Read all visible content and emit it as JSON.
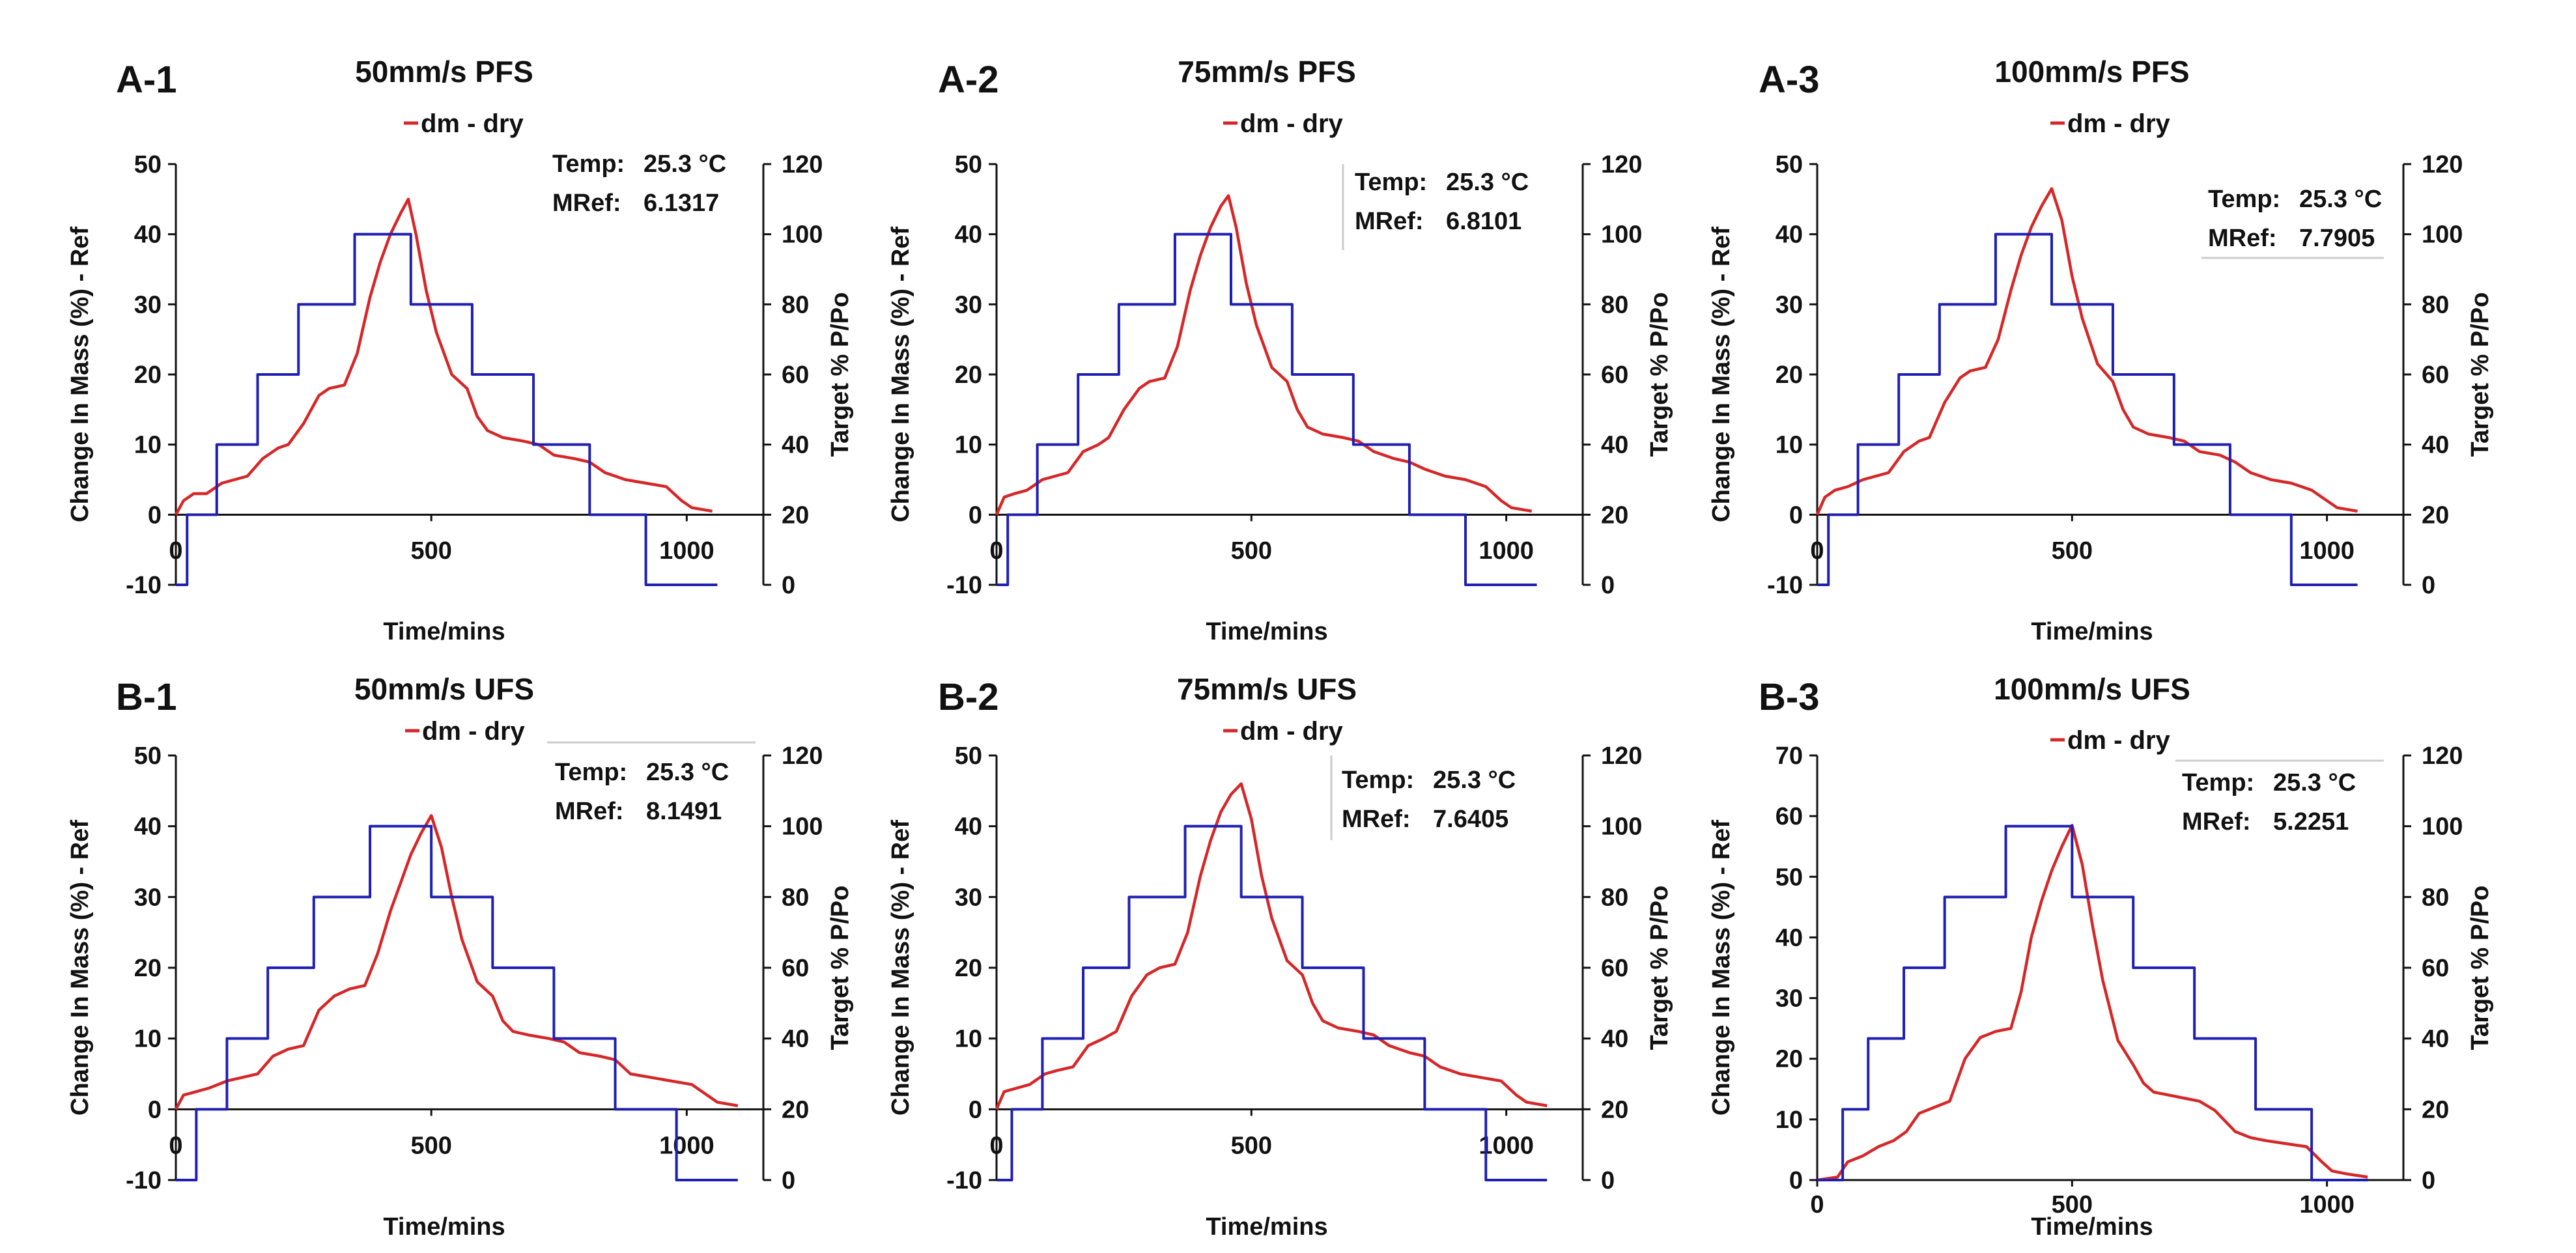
{
  "chart_data": [
    {
      "id": "A-1",
      "panel_label": "A-1",
      "type": "line",
      "title": "50mm/s PFS",
      "legend": "dm - dry",
      "xlabel": "Time/mins",
      "ylabel": "Change In Mass (%) - Ref",
      "y2label": "Target % P/Po",
      "xlim": [
        0,
        1150
      ],
      "ylim": [
        -10,
        50
      ],
      "y2lim": [
        0,
        120
      ],
      "xticks": [
        "0",
        "500",
        "1000"
      ],
      "yticks": [
        "-10",
        "0",
        "10",
        "20",
        "30",
        "40",
        "50"
      ],
      "y2ticks": [
        "0",
        "20",
        "40",
        "60",
        "80",
        "100",
        "120"
      ],
      "info": {
        "temp_label": "Temp:",
        "temp_value": "25.3 °C",
        "mref_label": "MRef:",
        "mref_value": "6.1317"
      },
      "series": [
        {
          "name": "dm - dry",
          "axis": "left",
          "color": "#d62728",
          "x": [
            0,
            15,
            35,
            60,
            90,
            115,
            140,
            170,
            200,
            220,
            250,
            280,
            300,
            330,
            355,
            380,
            400,
            420,
            440,
            455,
            470,
            490,
            510,
            540,
            570,
            590,
            610,
            640,
            680,
            710,
            740,
            780,
            810,
            840,
            880,
            920,
            960,
            990,
            1010,
            1050
          ],
          "values": [
            0,
            2,
            3,
            3,
            4.5,
            5,
            5.5,
            8,
            9.5,
            10,
            13,
            17,
            18,
            18.5,
            23,
            31,
            36,
            40,
            43,
            45,
            40,
            32,
            26,
            20,
            18,
            14,
            12,
            11,
            10.5,
            10,
            8.5,
            8,
            7.5,
            6,
            5,
            4.5,
            4,
            2,
            1,
            0.5
          ]
        },
        {
          "name": "Target % P/Po",
          "axis": "right",
          "color": "#1f1fb4",
          "step": true,
          "x": [
            0,
            22,
            80,
            160,
            240,
            350,
            460,
            580,
            700,
            810,
            920,
            1060
          ],
          "values": [
            0,
            20,
            40,
            60,
            80,
            100,
            80,
            60,
            40,
            20,
            0,
            0
          ]
        }
      ]
    },
    {
      "id": "A-2",
      "panel_label": "A-2",
      "type": "line",
      "title": "75mm/s PFS",
      "legend": "dm - dry",
      "xlabel": "Time/mins",
      "ylabel": "Change In Mass (%) - Ref",
      "y2label": "Target % P/Po",
      "xlim": [
        0,
        1150
      ],
      "ylim": [
        -10,
        50
      ],
      "y2lim": [
        0,
        120
      ],
      "xticks": [
        "0",
        "500",
        "1000"
      ],
      "yticks": [
        "-10",
        "0",
        "10",
        "20",
        "30",
        "40",
        "50"
      ],
      "y2ticks": [
        "0",
        "20",
        "40",
        "60",
        "80",
        "100",
        "120"
      ],
      "info": {
        "temp_label": "Temp:",
        "temp_value": "25.3 °C",
        "mref_label": "MRef:",
        "mref_value": "6.8101"
      },
      "series": [
        {
          "name": "dm - dry",
          "axis": "left",
          "color": "#d62728",
          "x": [
            0,
            15,
            35,
            60,
            90,
            115,
            140,
            170,
            200,
            220,
            250,
            280,
            300,
            330,
            355,
            380,
            400,
            420,
            440,
            455,
            470,
            490,
            510,
            540,
            570,
            590,
            610,
            640,
            680,
            710,
            740,
            780,
            810,
            840,
            880,
            920,
            960,
            990,
            1010,
            1050
          ],
          "values": [
            0,
            2.5,
            3,
            3.5,
            5,
            5.5,
            6,
            9,
            10,
            11,
            15,
            18,
            19,
            19.5,
            24,
            32,
            37,
            41,
            44,
            45.5,
            41,
            33,
            27,
            21,
            19,
            15,
            12.5,
            11.5,
            11,
            10.5,
            9,
            8,
            7.5,
            6.5,
            5.5,
            5,
            4,
            2,
            1,
            0.5
          ]
        },
        {
          "name": "Target % P/Po",
          "axis": "right",
          "color": "#1f1fb4",
          "step": true,
          "x": [
            0,
            22,
            80,
            160,
            240,
            350,
            460,
            580,
            700,
            810,
            920,
            1060
          ],
          "values": [
            0,
            20,
            40,
            60,
            80,
            100,
            80,
            60,
            40,
            20,
            0,
            0
          ]
        }
      ]
    },
    {
      "id": "A-3",
      "panel_label": "A-3",
      "type": "line",
      "title": "100mm/s PFS",
      "legend": "dm - dry",
      "xlabel": "Time/mins",
      "ylabel": "Change In Mass (%) - Ref",
      "y2label": "Target % P/Po",
      "xlim": [
        0,
        1150
      ],
      "ylim": [
        -10,
        50
      ],
      "y2lim": [
        0,
        120
      ],
      "xticks": [
        "0",
        "500",
        "1000"
      ],
      "yticks": [
        "-10",
        "0",
        "10",
        "20",
        "30",
        "40",
        "50"
      ],
      "y2ticks": [
        "0",
        "20",
        "40",
        "60",
        "80",
        "100",
        "120"
      ],
      "info": {
        "temp_label": "Temp:",
        "temp_value": "25.3 °C",
        "mref_label": "MRef:",
        "mref_value": "7.7905"
      },
      "series": [
        {
          "name": "dm - dry",
          "axis": "left",
          "color": "#d62728",
          "x": [
            0,
            15,
            35,
            60,
            90,
            115,
            140,
            170,
            200,
            220,
            250,
            280,
            300,
            330,
            355,
            380,
            400,
            420,
            440,
            460,
            480,
            500,
            520,
            550,
            580,
            600,
            620,
            650,
            690,
            720,
            750,
            790,
            820,
            850,
            890,
            930,
            970,
            1000,
            1020,
            1060
          ],
          "values": [
            0,
            2.5,
            3.5,
            4,
            5,
            5.5,
            6,
            9,
            10.5,
            11,
            16,
            19.5,
            20.5,
            21,
            25,
            32,
            37,
            41,
            44,
            46.5,
            42,
            34,
            28,
            21.5,
            19,
            15,
            12.5,
            11.5,
            11,
            10.5,
            9,
            8.5,
            7.5,
            6,
            5,
            4.5,
            3.5,
            2,
            1,
            0.5
          ]
        },
        {
          "name": "Target % P/Po",
          "axis": "right",
          "color": "#1f1fb4",
          "step": true,
          "x": [
            0,
            22,
            80,
            160,
            240,
            350,
            460,
            580,
            700,
            810,
            930,
            1060
          ],
          "values": [
            0,
            20,
            40,
            60,
            80,
            100,
            80,
            60,
            40,
            20,
            0,
            0
          ]
        }
      ]
    },
    {
      "id": "B-1",
      "panel_label": "B-1",
      "type": "line",
      "title": "50mm/s UFS",
      "legend": "dm - dry",
      "xlabel": "Time/mins",
      "ylabel": "Change In Mass (%) - Ref",
      "y2label": "Target % P/Po",
      "xlim": [
        0,
        1150
      ],
      "ylim": [
        -10,
        50
      ],
      "y2lim": [
        0,
        120
      ],
      "xticks": [
        "0",
        "500",
        "1000"
      ],
      "yticks": [
        "-10",
        "0",
        "10",
        "20",
        "30",
        "40",
        "50"
      ],
      "y2ticks": [
        "0",
        "20",
        "40",
        "60",
        "80",
        "100",
        "120"
      ],
      "info": {
        "temp_label": "Temp:",
        "temp_value": "25.3 °C",
        "mref_label": "MRef:",
        "mref_value": "8.1491"
      },
      "series": [
        {
          "name": "dm - dry",
          "axis": "left",
          "color": "#d62728",
          "x": [
            0,
            15,
            40,
            65,
            100,
            130,
            160,
            190,
            220,
            250,
            280,
            310,
            340,
            370,
            395,
            420,
            440,
            460,
            480,
            500,
            520,
            540,
            560,
            590,
            620,
            640,
            660,
            690,
            730,
            760,
            790,
            830,
            860,
            890,
            930,
            970,
            1010,
            1040,
            1060,
            1100
          ],
          "values": [
            0,
            2,
            2.5,
            3,
            4,
            4.5,
            5,
            7.5,
            8.5,
            9,
            14,
            16,
            17,
            17.5,
            22,
            28,
            32,
            36,
            39,
            41.5,
            37,
            30,
            24,
            18,
            16,
            12.5,
            11,
            10.5,
            10,
            9.5,
            8,
            7.5,
            7,
            5,
            4.5,
            4,
            3.5,
            2,
            1,
            0.5
          ]
        },
        {
          "name": "Target % P/Po",
          "axis": "right",
          "color": "#1f1fb4",
          "step": true,
          "x": [
            0,
            40,
            100,
            180,
            270,
            380,
            500,
            620,
            740,
            860,
            980,
            1100
          ],
          "values": [
            0,
            20,
            40,
            60,
            80,
            100,
            80,
            60,
            40,
            20,
            0,
            0
          ]
        }
      ]
    },
    {
      "id": "B-2",
      "panel_label": "B-2",
      "type": "line",
      "title": "75mm/s UFS",
      "legend": "dm - dry",
      "xlabel": "Time/mins",
      "ylabel": "Change In Mass (%) - Ref",
      "y2label": "Target % P/Po",
      "xlim": [
        0,
        1150
      ],
      "ylim": [
        -10,
        50
      ],
      "y2lim": [
        0,
        120
      ],
      "xticks": [
        "0",
        "500",
        "1000"
      ],
      "yticks": [
        "-10",
        "0",
        "10",
        "20",
        "30",
        "40",
        "50"
      ],
      "y2ticks": [
        "0",
        "20",
        "40",
        "60",
        "80",
        "100",
        "120"
      ],
      "info": {
        "temp_label": "Temp:",
        "temp_value": "25.3 °C",
        "mref_label": "MRef:",
        "mref_value": "7.6405"
      },
      "series": [
        {
          "name": "dm - dry",
          "axis": "left",
          "color": "#d62728",
          "x": [
            0,
            15,
            40,
            65,
            95,
            120,
            150,
            180,
            210,
            235,
            265,
            295,
            320,
            350,
            375,
            400,
            420,
            440,
            460,
            480,
            500,
            520,
            540,
            570,
            600,
            620,
            640,
            670,
            710,
            740,
            770,
            810,
            840,
            870,
            910,
            950,
            990,
            1020,
            1040,
            1080
          ],
          "values": [
            0,
            2.5,
            3,
            3.5,
            5,
            5.5,
            6,
            9,
            10,
            11,
            16,
            19,
            20,
            20.5,
            25,
            33,
            38,
            42,
            44.5,
            46,
            41,
            33,
            27,
            21,
            19,
            15,
            12.5,
            11.5,
            11,
            10.5,
            9,
            8,
            7.5,
            6,
            5,
            4.5,
            4,
            2,
            1,
            0.5
          ]
        },
        {
          "name": "Target % P/Po",
          "axis": "right",
          "color": "#1f1fb4",
          "step": true,
          "x": [
            0,
            30,
            90,
            170,
            260,
            370,
            480,
            600,
            720,
            840,
            960,
            1080
          ],
          "values": [
            0,
            20,
            40,
            60,
            80,
            100,
            80,
            60,
            40,
            20,
            0,
            0
          ]
        }
      ]
    },
    {
      "id": "B-3",
      "panel_label": "B-3",
      "type": "line",
      "title": "100mm/s UFS",
      "legend": "dm - dry",
      "xlabel": "Time/mins",
      "ylabel": "Change In Mass (%) - Ref",
      "y2label": "Target % P/Po",
      "xlim": [
        0,
        1150
      ],
      "ylim": [
        0,
        70
      ],
      "y2lim": [
        0,
        120
      ],
      "xticks": [
        "0",
        "500",
        "1000"
      ],
      "yticks": [
        "0",
        "10",
        "20",
        "30",
        "40",
        "50",
        "60",
        "70"
      ],
      "y2ticks": [
        "0",
        "20",
        "40",
        "60",
        "80",
        "100",
        "120"
      ],
      "info": {
        "temp_label": "Temp:",
        "temp_value": "25.3 °C",
        "mref_label": "MRef:",
        "mref_value": "5.2251"
      },
      "series": [
        {
          "name": "dm - dry",
          "axis": "left",
          "color": "#d62728",
          "x": [
            0,
            40,
            60,
            90,
            120,
            150,
            175,
            200,
            230,
            260,
            290,
            320,
            350,
            380,
            400,
            420,
            440,
            460,
            480,
            500,
            520,
            540,
            560,
            590,
            620,
            640,
            660,
            690,
            720,
            750,
            780,
            820,
            850,
            880,
            920,
            960,
            990,
            1010,
            1040,
            1080
          ],
          "values": [
            0,
            0.5,
            3,
            4,
            5.5,
            6.5,
            8,
            11,
            12,
            13,
            20,
            23.5,
            24.5,
            25,
            31,
            40,
            46,
            51,
            55,
            58.5,
            52,
            42,
            33,
            23,
            19,
            16,
            14.5,
            14,
            13.5,
            13,
            11.5,
            8,
            7,
            6.5,
            6,
            5.5,
            3,
            1.5,
            1,
            0.5
          ]
        },
        {
          "name": "Target % P/Po",
          "axis": "right",
          "color": "#1f1fb4",
          "step": true,
          "x": [
            0,
            50,
            100,
            170,
            250,
            370,
            500,
            620,
            740,
            860,
            970,
            1080
          ],
          "values": [
            0,
            20,
            40,
            60,
            80,
            100,
            80,
            60,
            40,
            20,
            0,
            0
          ]
        }
      ]
    }
  ]
}
